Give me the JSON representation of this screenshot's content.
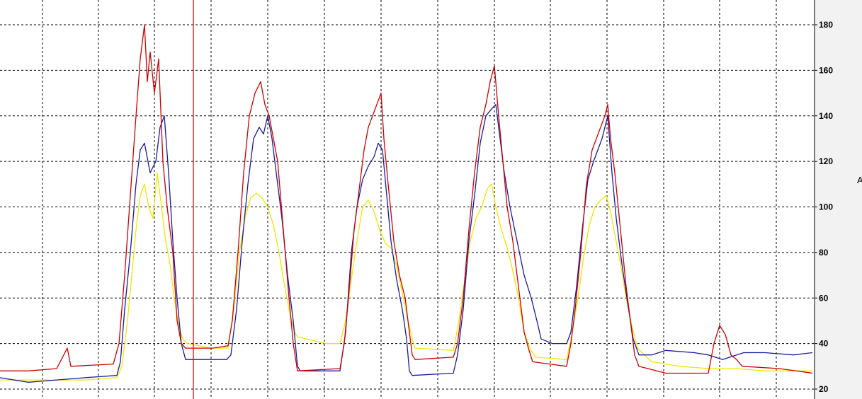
{
  "chart_data": {
    "type": "line",
    "ylim": [
      18,
      190
    ],
    "xlim": [
      0,
      1150
    ],
    "y_ticks": [
      20,
      40,
      60,
      80,
      100,
      120,
      140,
      160,
      180
    ],
    "y_tick_labels": [
      "20",
      "40",
      "60",
      "80",
      "100",
      "120",
      "140",
      "160",
      "180"
    ],
    "x_grid": [
      60,
      139,
      218,
      298,
      378,
      458,
      538,
      618,
      698,
      777,
      857,
      937,
      1016,
      1096
    ],
    "ylabel": "A",
    "grid": true,
    "cursor_x": 273,
    "cursor_color": "#cc0000",
    "series": [
      {
        "color": "#cc0000",
        "points": [
          [
            0,
            28
          ],
          [
            40,
            28
          ],
          [
            80,
            29
          ],
          [
            95,
            38
          ],
          [
            100,
            30
          ],
          [
            160,
            31
          ],
          [
            168,
            40
          ],
          [
            176,
            70
          ],
          [
            184,
            105
          ],
          [
            192,
            140
          ],
          [
            198,
            165
          ],
          [
            204,
            180
          ],
          [
            208,
            155
          ],
          [
            212,
            168
          ],
          [
            218,
            150
          ],
          [
            224,
            165
          ],
          [
            230,
            120
          ],
          [
            236,
            100
          ],
          [
            244,
            80
          ],
          [
            250,
            50
          ],
          [
            256,
            40
          ],
          [
            262,
            38
          ],
          [
            300,
            38
          ],
          [
            322,
            39
          ],
          [
            328,
            50
          ],
          [
            336,
            80
          ],
          [
            344,
            115
          ],
          [
            352,
            140
          ],
          [
            360,
            150
          ],
          [
            368,
            155
          ],
          [
            374,
            145
          ],
          [
            380,
            140
          ],
          [
            386,
            130
          ],
          [
            392,
            120
          ],
          [
            400,
            90
          ],
          [
            408,
            60
          ],
          [
            414,
            40
          ],
          [
            420,
            28
          ],
          [
            480,
            29
          ],
          [
            486,
            40
          ],
          [
            492,
            60
          ],
          [
            500,
            90
          ],
          [
            508,
            110
          ],
          [
            514,
            125
          ],
          [
            520,
            135
          ],
          [
            526,
            140
          ],
          [
            532,
            145
          ],
          [
            538,
            150
          ],
          [
            542,
            130
          ],
          [
            548,
            110
          ],
          [
            556,
            85
          ],
          [
            564,
            70
          ],
          [
            572,
            60
          ],
          [
            578,
            45
          ],
          [
            582,
            35
          ],
          [
            586,
            33
          ],
          [
            640,
            34
          ],
          [
            646,
            40
          ],
          [
            654,
            60
          ],
          [
            662,
            90
          ],
          [
            670,
            115
          ],
          [
            678,
            135
          ],
          [
            686,
            145
          ],
          [
            692,
            155
          ],
          [
            698,
            162
          ],
          [
            704,
            140
          ],
          [
            710,
            120
          ],
          [
            716,
            100
          ],
          [
            724,
            85
          ],
          [
            732,
            65
          ],
          [
            740,
            45
          ],
          [
            746,
            38
          ],
          [
            752,
            32
          ],
          [
            800,
            30
          ],
          [
            806,
            40
          ],
          [
            812,
            55
          ],
          [
            820,
            80
          ],
          [
            828,
            110
          ],
          [
            836,
            125
          ],
          [
            842,
            130
          ],
          [
            848,
            135
          ],
          [
            854,
            140
          ],
          [
            858,
            145
          ],
          [
            862,
            130
          ],
          [
            868,
            115
          ],
          [
            876,
            90
          ],
          [
            884,
            65
          ],
          [
            890,
            50
          ],
          [
            896,
            35
          ],
          [
            902,
            30
          ],
          [
            940,
            27
          ],
          [
            1000,
            27
          ],
          [
            1008,
            40
          ],
          [
            1016,
            48
          ],
          [
            1024,
            44
          ],
          [
            1032,
            35
          ],
          [
            1040,
            33
          ],
          [
            1048,
            30
          ],
          [
            1100,
            29
          ],
          [
            1147,
            27
          ]
        ]
      },
      {
        "color": "#1a1aa0",
        "points": [
          [
            0,
            25
          ],
          [
            40,
            23
          ],
          [
            80,
            24
          ],
          [
            120,
            25
          ],
          [
            165,
            26
          ],
          [
            170,
            32
          ],
          [
            176,
            55
          ],
          [
            184,
            80
          ],
          [
            192,
            110
          ],
          [
            198,
            125
          ],
          [
            204,
            128
          ],
          [
            212,
            115
          ],
          [
            220,
            120
          ],
          [
            226,
            135
          ],
          [
            232,
            140
          ],
          [
            238,
            115
          ],
          [
            244,
            85
          ],
          [
            250,
            60
          ],
          [
            256,
            40
          ],
          [
            262,
            33
          ],
          [
            320,
            33
          ],
          [
            326,
            35
          ],
          [
            334,
            55
          ],
          [
            342,
            85
          ],
          [
            350,
            110
          ],
          [
            358,
            130
          ],
          [
            366,
            135
          ],
          [
            372,
            132
          ],
          [
            378,
            140
          ],
          [
            384,
            130
          ],
          [
            390,
            115
          ],
          [
            398,
            95
          ],
          [
            406,
            70
          ],
          [
            414,
            50
          ],
          [
            420,
            30
          ],
          [
            424,
            28
          ],
          [
            480,
            28
          ],
          [
            488,
            45
          ],
          [
            496,
            80
          ],
          [
            504,
            100
          ],
          [
            512,
            112
          ],
          [
            520,
            118
          ],
          [
            528,
            122
          ],
          [
            534,
            128
          ],
          [
            540,
            125
          ],
          [
            546,
            105
          ],
          [
            552,
            85
          ],
          [
            560,
            68
          ],
          [
            568,
            55
          ],
          [
            574,
            42
          ],
          [
            578,
            28
          ],
          [
            582,
            26
          ],
          [
            640,
            27
          ],
          [
            646,
            35
          ],
          [
            654,
            55
          ],
          [
            662,
            85
          ],
          [
            670,
            105
          ],
          [
            678,
            128
          ],
          [
            686,
            140
          ],
          [
            694,
            143
          ],
          [
            700,
            145
          ],
          [
            706,
            130
          ],
          [
            712,
            115
          ],
          [
            720,
            100
          ],
          [
            730,
            85
          ],
          [
            740,
            70
          ],
          [
            750,
            60
          ],
          [
            758,
            50
          ],
          [
            764,
            42
          ],
          [
            780,
            40
          ],
          [
            800,
            40
          ],
          [
            806,
            45
          ],
          [
            814,
            65
          ],
          [
            822,
            90
          ],
          [
            830,
            112
          ],
          [
            838,
            120
          ],
          [
            844,
            125
          ],
          [
            850,
            130
          ],
          [
            858,
            140
          ],
          [
            864,
            115
          ],
          [
            870,
            95
          ],
          [
            878,
            75
          ],
          [
            886,
            58
          ],
          [
            894,
            42
          ],
          [
            902,
            35
          ],
          [
            920,
            35
          ],
          [
            940,
            37
          ],
          [
            980,
            36
          ],
          [
            1000,
            35
          ],
          [
            1020,
            33
          ],
          [
            1040,
            35
          ],
          [
            1050,
            36
          ],
          [
            1080,
            36
          ],
          [
            1120,
            35
          ],
          [
            1147,
            36
          ]
        ]
      },
      {
        "color": "#f2e600",
        "points": [
          [
            0,
            24
          ],
          [
            60,
            24
          ],
          [
            120,
            24
          ],
          [
            165,
            25
          ],
          [
            172,
            30
          ],
          [
            180,
            50
          ],
          [
            186,
            70
          ],
          [
            192,
            90
          ],
          [
            198,
            105
          ],
          [
            204,
            110
          ],
          [
            210,
            100
          ],
          [
            216,
            95
          ],
          [
            222,
            115
          ],
          [
            228,
            100
          ],
          [
            234,
            85
          ],
          [
            240,
            75
          ],
          [
            246,
            60
          ],
          [
            252,
            48
          ],
          [
            258,
            42
          ],
          [
            264,
            40
          ],
          [
            300,
            38
          ],
          [
            322,
            38
          ],
          [
            330,
            55
          ],
          [
            338,
            80
          ],
          [
            346,
            95
          ],
          [
            354,
            104
          ],
          [
            362,
            106
          ],
          [
            370,
            104
          ],
          [
            378,
            100
          ],
          [
            386,
            92
          ],
          [
            394,
            80
          ],
          [
            402,
            65
          ],
          [
            410,
            52
          ],
          [
            416,
            45
          ],
          [
            420,
            43
          ],
          [
            460,
            40
          ],
          [
            480,
            40
          ],
          [
            488,
            50
          ],
          [
            496,
            68
          ],
          [
            504,
            85
          ],
          [
            512,
            100
          ],
          [
            520,
            103
          ],
          [
            528,
            98
          ],
          [
            536,
            90
          ],
          [
            544,
            84
          ],
          [
            552,
            82
          ],
          [
            560,
            74
          ],
          [
            568,
            62
          ],
          [
            576,
            50
          ],
          [
            582,
            42
          ],
          [
            586,
            38
          ],
          [
            640,
            37
          ],
          [
            648,
            50
          ],
          [
            656,
            68
          ],
          [
            664,
            85
          ],
          [
            672,
            95
          ],
          [
            680,
            100
          ],
          [
            688,
            108
          ],
          [
            694,
            110
          ],
          [
            700,
            100
          ],
          [
            708,
            90
          ],
          [
            716,
            82
          ],
          [
            724,
            72
          ],
          [
            732,
            60
          ],
          [
            740,
            45
          ],
          [
            748,
            38
          ],
          [
            756,
            34
          ],
          [
            800,
            33
          ],
          [
            808,
            45
          ],
          [
            816,
            60
          ],
          [
            824,
            78
          ],
          [
            832,
            92
          ],
          [
            840,
            100
          ],
          [
            848,
            103
          ],
          [
            856,
            105
          ],
          [
            862,
            98
          ],
          [
            868,
            88
          ],
          [
            876,
            75
          ],
          [
            884,
            60
          ],
          [
            892,
            48
          ],
          [
            900,
            38
          ],
          [
            920,
            32
          ],
          [
            960,
            30
          ],
          [
            1000,
            29
          ],
          [
            1040,
            29
          ],
          [
            1080,
            28
          ],
          [
            1120,
            28
          ],
          [
            1147,
            28
          ]
        ]
      }
    ]
  }
}
